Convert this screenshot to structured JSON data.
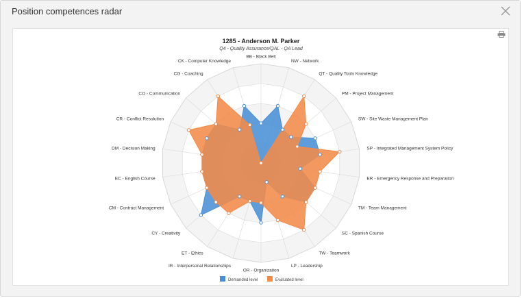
{
  "dialog": {
    "title": "Position competences radar",
    "close_icon": "close-icon",
    "print_icon": "printer-icon"
  },
  "colors": {
    "demanded": "#4a8fd6",
    "evaluated": "#f28b4a",
    "grid": "#d8d8d8",
    "band_a": "#f4f4f4",
    "band_b": "#ffffff"
  },
  "chart_data": {
    "type": "radar",
    "title": "1285 - Anderson M. Parker",
    "subtitle": "Q4 - Quality Assurance/QAL - QA Lead",
    "max": 5,
    "categories": [
      "BB - Black Belt",
      "NW - Network",
      "QT - Quality Tools Knowledge",
      "PM - Project Management",
      "SW - Site Waste Management Plan",
      "SP - Integrated Management System Policy",
      "ER - Emergency Response and Preparation",
      "TM - Team Management",
      "SC - Spanish Course",
      "TW - Teamwork",
      "LP - Leadership",
      "OR - Organization",
      "IR - Interpersonal Relationships",
      "ET - Ethics",
      "CY - Creativity",
      "CM - Contract Management",
      "EC - English Course",
      "DM - Decision Making",
      "CR - Conflict Resolution",
      "CO - Communication",
      "CG - Coaching",
      "CK - Computer Knowledge"
    ],
    "series": [
      {
        "name": "Demanded level",
        "values": [
          2,
          3,
          2,
          2,
          3,
          3,
          2,
          3,
          3,
          2,
          1,
          3,
          2,
          2,
          4,
          3,
          3,
          3,
          3,
          3,
          2,
          3
        ]
      },
      {
        "name": "Evaluated level",
        "values": [
          0,
          0,
          4,
          3,
          2,
          4,
          3,
          3,
          3,
          4,
          3,
          2,
          2,
          3,
          3,
          3,
          3,
          3,
          4,
          3,
          4,
          2
        ]
      }
    ],
    "legend": {
      "position": "bottom-center",
      "demanded_label": "Demanded level",
      "evaluated_label": "Evaluated level"
    }
  }
}
